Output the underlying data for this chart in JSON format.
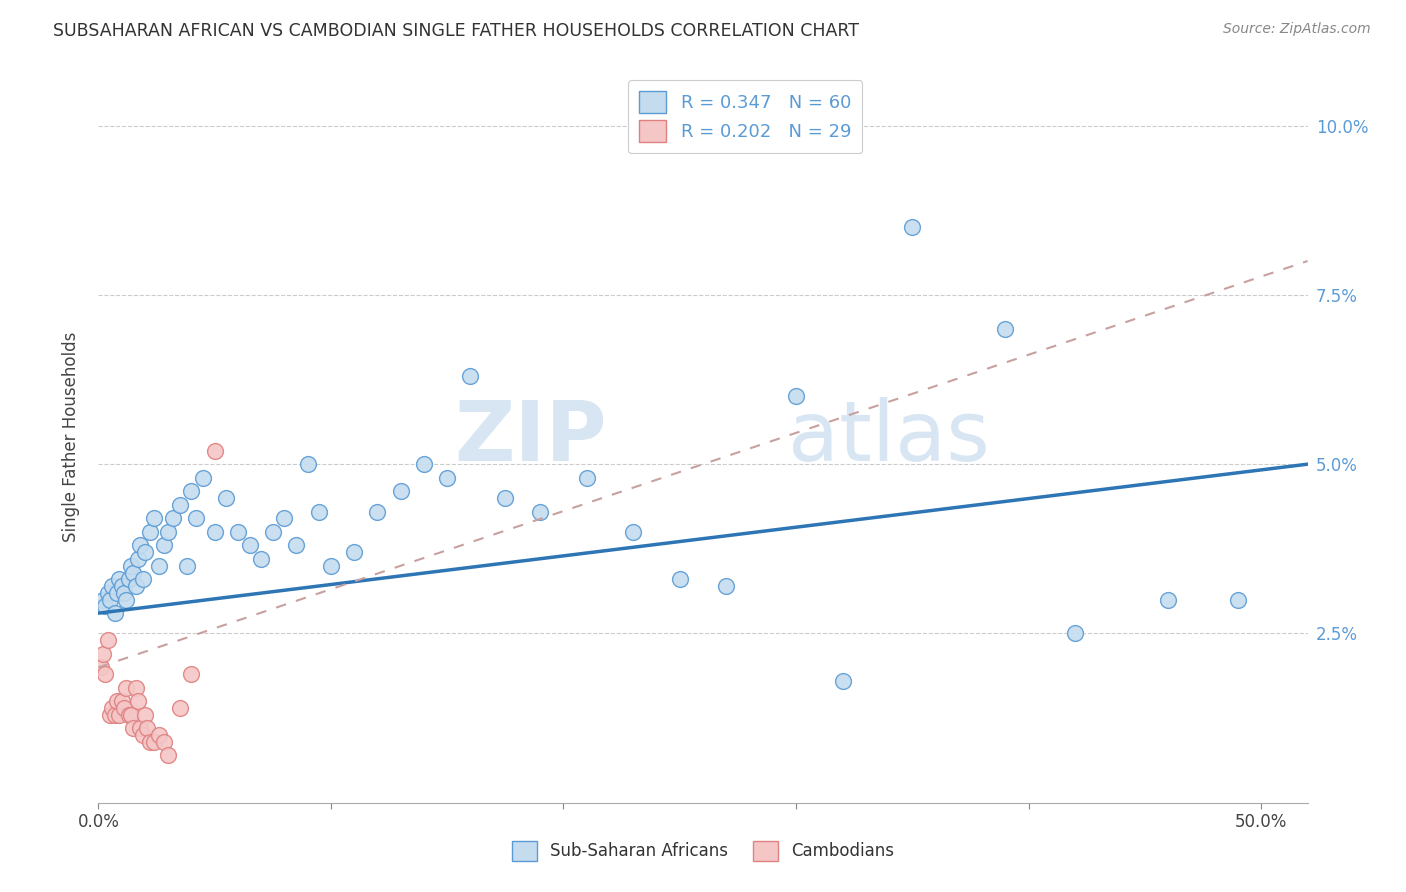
{
  "title": "SUBSAHARAN AFRICAN VS CAMBODIAN SINGLE FATHER HOUSEHOLDS CORRELATION CHART",
  "source": "Source: ZipAtlas.com",
  "ylabel": "Single Father Households",
  "xlim": [
    0.0,
    0.52
  ],
  "ylim": [
    0.0,
    0.108
  ],
  "x_tick_positions": [
    0.0,
    0.1,
    0.2,
    0.3,
    0.4,
    0.5
  ],
  "x_tick_labels": [
    "0.0%",
    "",
    "",
    "",
    "",
    "50.0%"
  ],
  "y_tick_positions": [
    0.025,
    0.05,
    0.075,
    0.1
  ],
  "y_tick_labels": [
    "2.5%",
    "5.0%",
    "7.5%",
    "10.0%"
  ],
  "legend_label_blue": "R = 0.347   N = 60",
  "legend_label_pink": "R = 0.202   N = 29",
  "legend_label_blue2": "Sub-Saharan Africans",
  "legend_label_pink2": "Cambodians",
  "color_blue_fill": "#C5DCEF",
  "color_blue_edge": "#5B9BD5",
  "color_pink_fill": "#F4C6C6",
  "color_pink_edge": "#E08080",
  "color_blue_line": "#2E75B6",
  "color_pink_line": "#C8A0A0",
  "watermark_zip": "ZIP",
  "watermark_atlas": "atlas",
  "blue_N": 60,
  "pink_N": 29,
  "blue_x": [
    0.002,
    0.003,
    0.004,
    0.005,
    0.006,
    0.007,
    0.008,
    0.009,
    0.01,
    0.011,
    0.012,
    0.013,
    0.014,
    0.015,
    0.016,
    0.017,
    0.018,
    0.019,
    0.02,
    0.022,
    0.024,
    0.026,
    0.028,
    0.03,
    0.032,
    0.035,
    0.038,
    0.04,
    0.042,
    0.045,
    0.05,
    0.055,
    0.06,
    0.065,
    0.07,
    0.075,
    0.08,
    0.085,
    0.09,
    0.095,
    0.1,
    0.11,
    0.12,
    0.13,
    0.14,
    0.15,
    0.16,
    0.175,
    0.19,
    0.21,
    0.23,
    0.25,
    0.27,
    0.3,
    0.32,
    0.35,
    0.39,
    0.42,
    0.46,
    0.49
  ],
  "blue_y": [
    0.03,
    0.029,
    0.031,
    0.03,
    0.032,
    0.028,
    0.031,
    0.033,
    0.032,
    0.031,
    0.03,
    0.033,
    0.035,
    0.034,
    0.032,
    0.036,
    0.038,
    0.033,
    0.037,
    0.04,
    0.042,
    0.035,
    0.038,
    0.04,
    0.042,
    0.044,
    0.035,
    0.046,
    0.042,
    0.048,
    0.04,
    0.045,
    0.04,
    0.038,
    0.036,
    0.04,
    0.042,
    0.038,
    0.05,
    0.043,
    0.035,
    0.037,
    0.043,
    0.046,
    0.05,
    0.048,
    0.063,
    0.045,
    0.043,
    0.048,
    0.04,
    0.033,
    0.032,
    0.06,
    0.018,
    0.085,
    0.07,
    0.025,
    0.03,
    0.03
  ],
  "blue_line_x": [
    0.0,
    0.52
  ],
  "blue_line_y": [
    0.028,
    0.05
  ],
  "pink_x": [
    0.001,
    0.002,
    0.003,
    0.004,
    0.005,
    0.006,
    0.007,
    0.008,
    0.009,
    0.01,
    0.011,
    0.012,
    0.013,
    0.014,
    0.015,
    0.016,
    0.017,
    0.018,
    0.019,
    0.02,
    0.021,
    0.022,
    0.024,
    0.026,
    0.028,
    0.03,
    0.035,
    0.04,
    0.05
  ],
  "pink_y": [
    0.02,
    0.022,
    0.019,
    0.024,
    0.013,
    0.014,
    0.013,
    0.015,
    0.013,
    0.015,
    0.014,
    0.017,
    0.013,
    0.013,
    0.011,
    0.017,
    0.015,
    0.011,
    0.01,
    0.013,
    0.011,
    0.009,
    0.009,
    0.01,
    0.009,
    0.007,
    0.014,
    0.019,
    0.052
  ],
  "pink_line_x": [
    0.0,
    0.52
  ],
  "pink_line_y": [
    0.02,
    0.08
  ]
}
